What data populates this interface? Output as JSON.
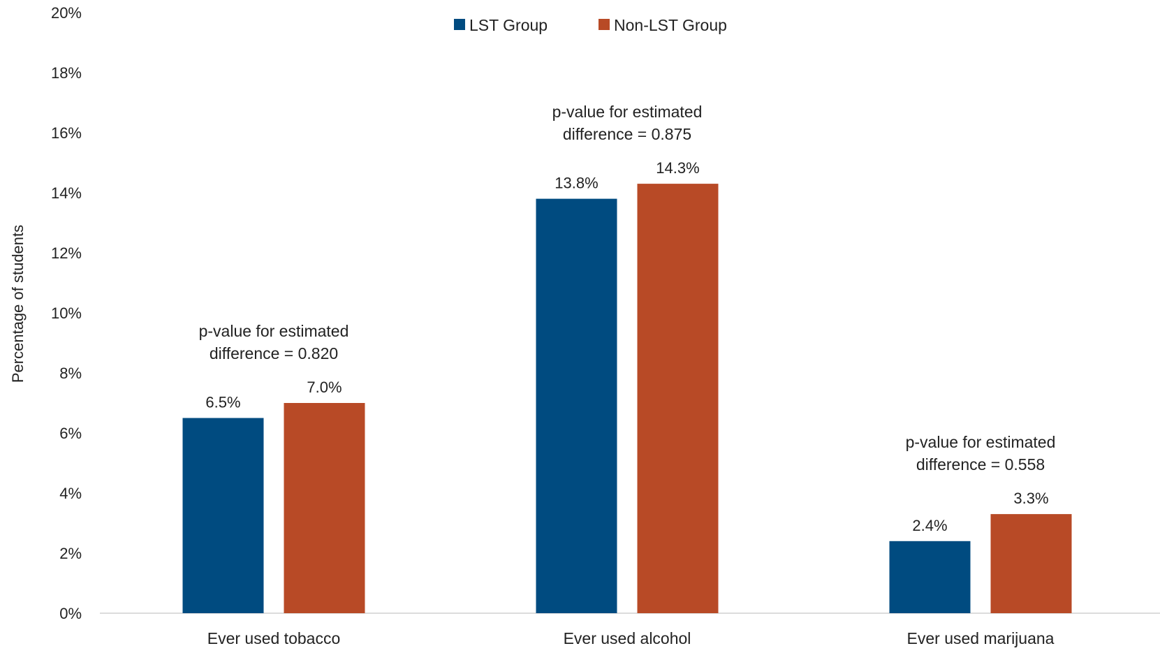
{
  "chart_data": {
    "type": "bar",
    "categories": [
      "Ever used tobacco",
      "Ever used alcohol",
      "Ever used marijuana"
    ],
    "series": [
      {
        "name": "LST Group",
        "values": [
          6.5,
          13.8,
          2.4
        ],
        "labels": [
          "6.5%",
          "13.8%",
          "2.4%"
        ],
        "color": "#004b80"
      },
      {
        "name": "Non-LST Group",
        "values": [
          7.0,
          14.3,
          3.3
        ],
        "labels": [
          "7.0%",
          "14.3%",
          "3.3%"
        ],
        "color": "#b84a26"
      }
    ],
    "annotations": [
      {
        "category": "Ever used tobacco",
        "lines": [
          "p-value for estimated",
          "difference = 0.820"
        ]
      },
      {
        "category": "Ever used alcohol",
        "lines": [
          "p-value for estimated",
          "difference = 0.875"
        ]
      },
      {
        "category": "Ever used marijuana",
        "lines": [
          "p-value for estimated",
          "difference = 0.558"
        ]
      }
    ],
    "title": "",
    "xlabel": "",
    "ylabel": "Percentage of students",
    "ylim": [
      0,
      20
    ],
    "yticks": [
      "0%",
      "2%",
      "4%",
      "6%",
      "8%",
      "10%",
      "12%",
      "14%",
      "16%",
      "18%",
      "20%"
    ],
    "grid": false,
    "legend": "top-center"
  }
}
